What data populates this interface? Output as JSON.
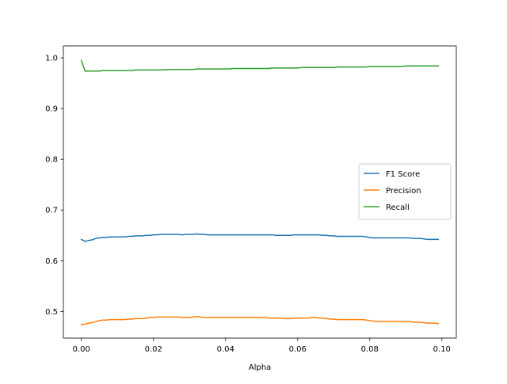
{
  "chart_data": {
    "type": "line",
    "title": "",
    "xlabel": "Alpha",
    "ylabel": "",
    "xlim": [
      -0.005,
      0.104
    ],
    "ylim": [
      0.4475,
      1.0235
    ],
    "xticks": [
      0.0,
      0.02,
      0.04,
      0.06,
      0.08,
      0.1
    ],
    "xtick_labels": [
      "0.00",
      "0.02",
      "0.04",
      "0.06",
      "0.08",
      "0.10"
    ],
    "yticks": [
      0.5,
      0.6,
      0.7,
      0.8,
      0.9,
      1.0
    ],
    "ytick_labels": [
      "0.5",
      "0.6",
      "0.7",
      "0.8",
      "0.9",
      "1.0"
    ],
    "grid": false,
    "legend_position": "center-right",
    "x": [
      0.0,
      0.001,
      0.002,
      0.003,
      0.004,
      0.005,
      0.006,
      0.007,
      0.008,
      0.009,
      0.01,
      0.011,
      0.012,
      0.013,
      0.014,
      0.015,
      0.016,
      0.017,
      0.018,
      0.019,
      0.02,
      0.021,
      0.022,
      0.023,
      0.024,
      0.025,
      0.026,
      0.027,
      0.028,
      0.029,
      0.03,
      0.031,
      0.032,
      0.033,
      0.034,
      0.035,
      0.036,
      0.037,
      0.038,
      0.039,
      0.04,
      0.041,
      0.042,
      0.043,
      0.044,
      0.045,
      0.046,
      0.047,
      0.048,
      0.049,
      0.05,
      0.051,
      0.052,
      0.053,
      0.054,
      0.055,
      0.056,
      0.057,
      0.058,
      0.059,
      0.06,
      0.061,
      0.062,
      0.063,
      0.064,
      0.065,
      0.066,
      0.067,
      0.068,
      0.069,
      0.07,
      0.071,
      0.072,
      0.073,
      0.074,
      0.075,
      0.076,
      0.077,
      0.078,
      0.079,
      0.08,
      0.081,
      0.082,
      0.083,
      0.084,
      0.085,
      0.086,
      0.087,
      0.088,
      0.089,
      0.09,
      0.091,
      0.092,
      0.093,
      0.094,
      0.095,
      0.096,
      0.097,
      0.098,
      0.099
    ],
    "series": [
      {
        "name": "F1 Score",
        "color": "#1f77b4",
        "values": [
          0.642,
          0.638,
          0.64,
          0.641,
          0.644,
          0.645,
          0.646,
          0.646,
          0.647,
          0.647,
          0.647,
          0.647,
          0.647,
          0.648,
          0.648,
          0.649,
          0.649,
          0.649,
          0.65,
          0.65,
          0.651,
          0.651,
          0.652,
          0.652,
          0.652,
          0.652,
          0.652,
          0.652,
          0.651,
          0.652,
          0.652,
          0.652,
          0.653,
          0.652,
          0.652,
          0.651,
          0.651,
          0.651,
          0.651,
          0.651,
          0.651,
          0.651,
          0.651,
          0.651,
          0.651,
          0.651,
          0.651,
          0.651,
          0.651,
          0.651,
          0.651,
          0.651,
          0.651,
          0.651,
          0.65,
          0.65,
          0.65,
          0.65,
          0.65,
          0.651,
          0.651,
          0.651,
          0.651,
          0.651,
          0.651,
          0.651,
          0.651,
          0.65,
          0.65,
          0.649,
          0.649,
          0.648,
          0.648,
          0.648,
          0.648,
          0.648,
          0.648,
          0.648,
          0.648,
          0.647,
          0.646,
          0.645,
          0.645,
          0.645,
          0.645,
          0.645,
          0.645,
          0.645,
          0.645,
          0.645,
          0.645,
          0.645,
          0.644,
          0.644,
          0.644,
          0.643,
          0.642,
          0.642,
          0.642,
          0.642
        ]
      },
      {
        "name": "Precision",
        "color": "#ff7f0e",
        "values": [
          0.474,
          0.475,
          0.477,
          0.478,
          0.48,
          0.482,
          0.483,
          0.483,
          0.484,
          0.484,
          0.484,
          0.484,
          0.484,
          0.485,
          0.485,
          0.486,
          0.486,
          0.486,
          0.487,
          0.488,
          0.488,
          0.489,
          0.489,
          0.489,
          0.489,
          0.489,
          0.489,
          0.489,
          0.488,
          0.488,
          0.488,
          0.489,
          0.49,
          0.489,
          0.488,
          0.488,
          0.488,
          0.488,
          0.488,
          0.488,
          0.488,
          0.488,
          0.488,
          0.488,
          0.488,
          0.488,
          0.488,
          0.488,
          0.488,
          0.488,
          0.488,
          0.488,
          0.487,
          0.487,
          0.487,
          0.487,
          0.486,
          0.486,
          0.486,
          0.487,
          0.487,
          0.487,
          0.487,
          0.487,
          0.488,
          0.488,
          0.487,
          0.487,
          0.486,
          0.485,
          0.485,
          0.484,
          0.484,
          0.484,
          0.484,
          0.484,
          0.484,
          0.484,
          0.484,
          0.483,
          0.482,
          0.481,
          0.48,
          0.48,
          0.48,
          0.48,
          0.48,
          0.48,
          0.48,
          0.48,
          0.48,
          0.48,
          0.479,
          0.479,
          0.479,
          0.478,
          0.477,
          0.477,
          0.477,
          0.476
        ]
      },
      {
        "name": "Recall",
        "color": "#2ca02c",
        "values": [
          0.995,
          0.974,
          0.974,
          0.974,
          0.974,
          0.974,
          0.975,
          0.975,
          0.975,
          0.975,
          0.975,
          0.975,
          0.975,
          0.975,
          0.975,
          0.976,
          0.976,
          0.976,
          0.976,
          0.976,
          0.976,
          0.976,
          0.976,
          0.976,
          0.977,
          0.977,
          0.977,
          0.977,
          0.977,
          0.977,
          0.977,
          0.977,
          0.978,
          0.978,
          0.978,
          0.978,
          0.978,
          0.978,
          0.978,
          0.978,
          0.978,
          0.978,
          0.979,
          0.979,
          0.979,
          0.979,
          0.979,
          0.979,
          0.979,
          0.979,
          0.979,
          0.979,
          0.979,
          0.98,
          0.98,
          0.98,
          0.98,
          0.98,
          0.98,
          0.98,
          0.98,
          0.981,
          0.981,
          0.981,
          0.981,
          0.981,
          0.981,
          0.981,
          0.981,
          0.981,
          0.981,
          0.982,
          0.982,
          0.982,
          0.982,
          0.982,
          0.982,
          0.982,
          0.982,
          0.982,
          0.983,
          0.983,
          0.983,
          0.983,
          0.983,
          0.983,
          0.983,
          0.983,
          0.983,
          0.983,
          0.984,
          0.984,
          0.984,
          0.984,
          0.984,
          0.984,
          0.984,
          0.984,
          0.984,
          0.984
        ]
      }
    ]
  }
}
